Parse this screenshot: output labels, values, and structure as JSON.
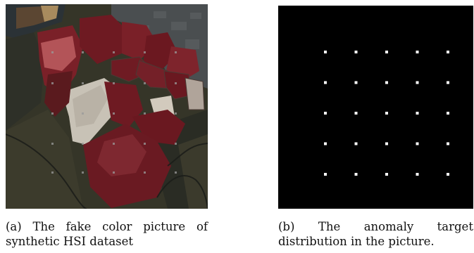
{
  "figure_a": {
    "caption_line1": "(a) The fake color picture of",
    "caption_line2": "synthetic HSI dataset",
    "image": {
      "description_icon": "satellite-false-color-image",
      "marker_grid": {
        "rows": 5,
        "cols": 5
      },
      "colors": {
        "salt_pond_red": "#6e1a22",
        "salt_pond_pink": "#c05a5a",
        "salt_flat_gray": "#c8c2b6",
        "marsh_dark": "#2a2a22",
        "land_olive": "#3b3a2a",
        "water_deep": "#2b3236",
        "urban_gray": "#4a4e50",
        "marker_gray": "#9a9a9a"
      }
    }
  },
  "figure_b": {
    "caption_words": [
      "(b)",
      "The",
      "anomaly",
      "target"
    ],
    "caption_line2": "distribution in the picture.",
    "image": {
      "background": "#000000",
      "marker_color": "#ffffff",
      "marker_grid": {
        "rows": 5,
        "cols": 5
      }
    }
  }
}
